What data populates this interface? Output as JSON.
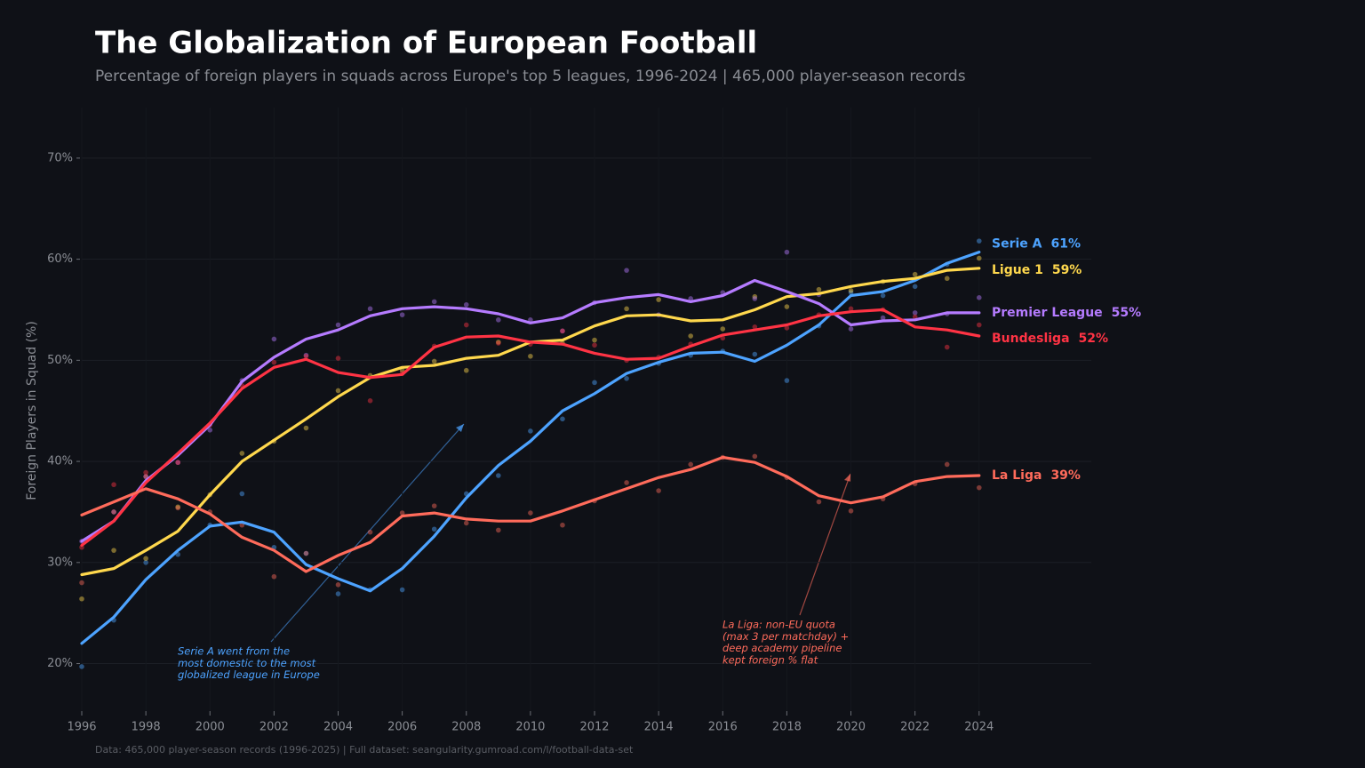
{
  "chart_data": {
    "type": "line",
    "title": "The Globalization of European Football",
    "subtitle": "Percentage of foreign players in squads across Europe's top 5 leagues, 1996-2024  |  465,000 player-season records",
    "y_label": "Foreign Players in Squad (%)",
    "source": "Data: 465,000 player-season records (1996-2025)  |  Full dataset: seangularity.gumroad.com/l/football-data-set",
    "x": [
      1996,
      1997,
      1998,
      1999,
      2000,
      2001,
      2002,
      2003,
      2004,
      2005,
      2006,
      2007,
      2008,
      2009,
      2010,
      2011,
      2012,
      2013,
      2014,
      2015,
      2016,
      2017,
      2018,
      2019,
      2020,
      2021,
      2022,
      2023,
      2024
    ],
    "xlim": [
      1996,
      2027.5
    ],
    "xticks": [
      1996,
      1998,
      2000,
      2002,
      2004,
      2006,
      2008,
      2010,
      2012,
      2014,
      2016,
      2018,
      2020,
      2022,
      2024
    ],
    "ylim": [
      15.3,
      75
    ],
    "yticks": [
      {
        "value": 20,
        "label": "20%"
      },
      {
        "value": 30,
        "label": "30%"
      },
      {
        "value": 40,
        "label": "40%"
      },
      {
        "value": 50,
        "label": "50%"
      },
      {
        "value": 60,
        "label": "60%"
      },
      {
        "value": 70,
        "label": "70%"
      }
    ],
    "grid": true,
    "series": [
      {
        "name": "Serie A",
        "color": "#4da3ff",
        "end_label": "61%",
        "values": [
          22.0,
          24.6,
          28.3,
          31.2,
          33.6,
          34.0,
          33.0,
          29.8,
          28.4,
          27.2,
          29.4,
          32.6,
          36.4,
          39.6,
          42.0,
          45.0,
          46.7,
          48.7,
          49.8,
          50.7,
          50.8,
          49.9,
          51.5,
          53.5,
          56.4,
          56.8,
          57.9,
          59.6,
          60.7
        ],
        "raw": [
          19.7,
          24.3,
          30.0,
          30.8,
          33.7,
          36.8,
          31.5,
          30.9,
          26.9,
          27.3,
          27.3,
          33.3,
          36.8,
          38.6,
          43.0,
          44.2,
          47.8,
          48.2,
          49.7,
          50.5,
          50.9,
          50.6,
          48.0,
          53.4,
          56.7,
          56.4,
          57.3,
          59.5,
          61.8
        ]
      },
      {
        "name": "Ligue 1",
        "color": "#ffd84d",
        "end_label": "59%",
        "values": [
          28.8,
          29.4,
          31.2,
          33.1,
          36.7,
          40.0,
          42.1,
          44.2,
          46.4,
          48.3,
          49.3,
          49.5,
          50.2,
          50.5,
          51.8,
          52.0,
          53.4,
          54.4,
          54.5,
          53.9,
          54.0,
          55.0,
          56.3,
          56.6,
          57.3,
          57.8,
          58.1,
          58.9,
          59.1
        ],
        "raw": [
          26.4,
          31.2,
          30.4,
          35.5,
          36.7,
          40.8,
          42.0,
          43.3,
          47.0,
          48.5,
          49.0,
          49.9,
          49.0,
          51.8,
          50.4,
          51.7,
          52.0,
          55.1,
          56.0,
          52.4,
          53.1,
          56.3,
          55.3,
          57.0,
          56.9,
          57.8,
          58.5,
          58.1,
          60.1
        ]
      },
      {
        "name": "Premier League",
        "color": "#b57bff",
        "end_label": "55%",
        "values": [
          32.1,
          34.1,
          38.1,
          40.6,
          43.6,
          47.9,
          50.3,
          52.1,
          53.0,
          54.4,
          55.1,
          55.3,
          55.1,
          54.6,
          53.7,
          54.2,
          55.7,
          56.2,
          56.5,
          55.8,
          56.4,
          57.9,
          56.8,
          55.6,
          53.5,
          53.9,
          54.0,
          54.7,
          54.7
        ],
        "raw": [
          32.1,
          35.0,
          38.5,
          39.9,
          43.1,
          48.0,
          52.1,
          50.5,
          53.5,
          55.1,
          54.5,
          55.8,
          55.5,
          54.0,
          54.0,
          52.9,
          55.7,
          58.9,
          54.5,
          56.1,
          56.7,
          56.1,
          60.7,
          56.5,
          53.1,
          54.2,
          54.7,
          54.6,
          56.2
        ]
      },
      {
        "name": "Bundesliga",
        "color": "#ff3344",
        "end_label": "52%",
        "values": [
          31.7,
          34.1,
          37.9,
          40.8,
          43.8,
          47.2,
          49.3,
          50.1,
          48.8,
          48.3,
          48.6,
          51.3,
          52.3,
          52.4,
          51.8,
          51.6,
          50.7,
          50.1,
          50.2,
          51.4,
          52.5,
          53.0,
          53.5,
          54.4,
          54.8,
          55.0,
          53.3,
          53.0,
          52.4
        ],
        "raw": [
          31.5,
          37.7,
          38.9,
          39.9,
          43.6,
          47.5,
          49.8,
          50.4,
          50.2,
          46.0,
          48.7,
          51.4,
          53.5,
          51.7,
          51.6,
          52.9,
          51.5,
          50.0,
          50.3,
          51.6,
          52.2,
          53.3,
          53.2,
          54.5,
          55.1,
          55.0,
          54.3,
          51.3,
          53.5
        ]
      },
      {
        "name": "La Liga",
        "color": "#ff6b5b",
        "end_label": "39%",
        "values": [
          34.7,
          36.0,
          37.3,
          36.3,
          34.8,
          32.5,
          31.2,
          29.1,
          30.7,
          32.0,
          34.6,
          34.9,
          34.3,
          34.1,
          34.1,
          35.1,
          36.2,
          37.3,
          38.4,
          39.2,
          40.4,
          39.9,
          38.5,
          36.6,
          35.9,
          36.5,
          38.0,
          38.5,
          38.6
        ],
        "raw": [
          28.0,
          35.0,
          38.5,
          35.4,
          35.0,
          33.7,
          28.6,
          30.9,
          27.8,
          33.0,
          34.9,
          35.6,
          33.9,
          33.2,
          34.9,
          33.7,
          36.1,
          37.9,
          37.1,
          39.7,
          40.4,
          40.5,
          38.4,
          36.0,
          35.1,
          36.3,
          37.8,
          39.7,
          37.4
        ]
      }
    ],
    "annotations": [
      {
        "lines": [
          "Serie A went from the",
          "most domestic to the most",
          "globalized league in Europe"
        ],
        "color": "#4da3ff"
      },
      {
        "lines": [
          "La Liga: non-EU quota",
          "(max 3 per matchday) +",
          "deep academy pipeline",
          "kept foreign % flat"
        ],
        "color": "#ff6b5b"
      }
    ]
  }
}
